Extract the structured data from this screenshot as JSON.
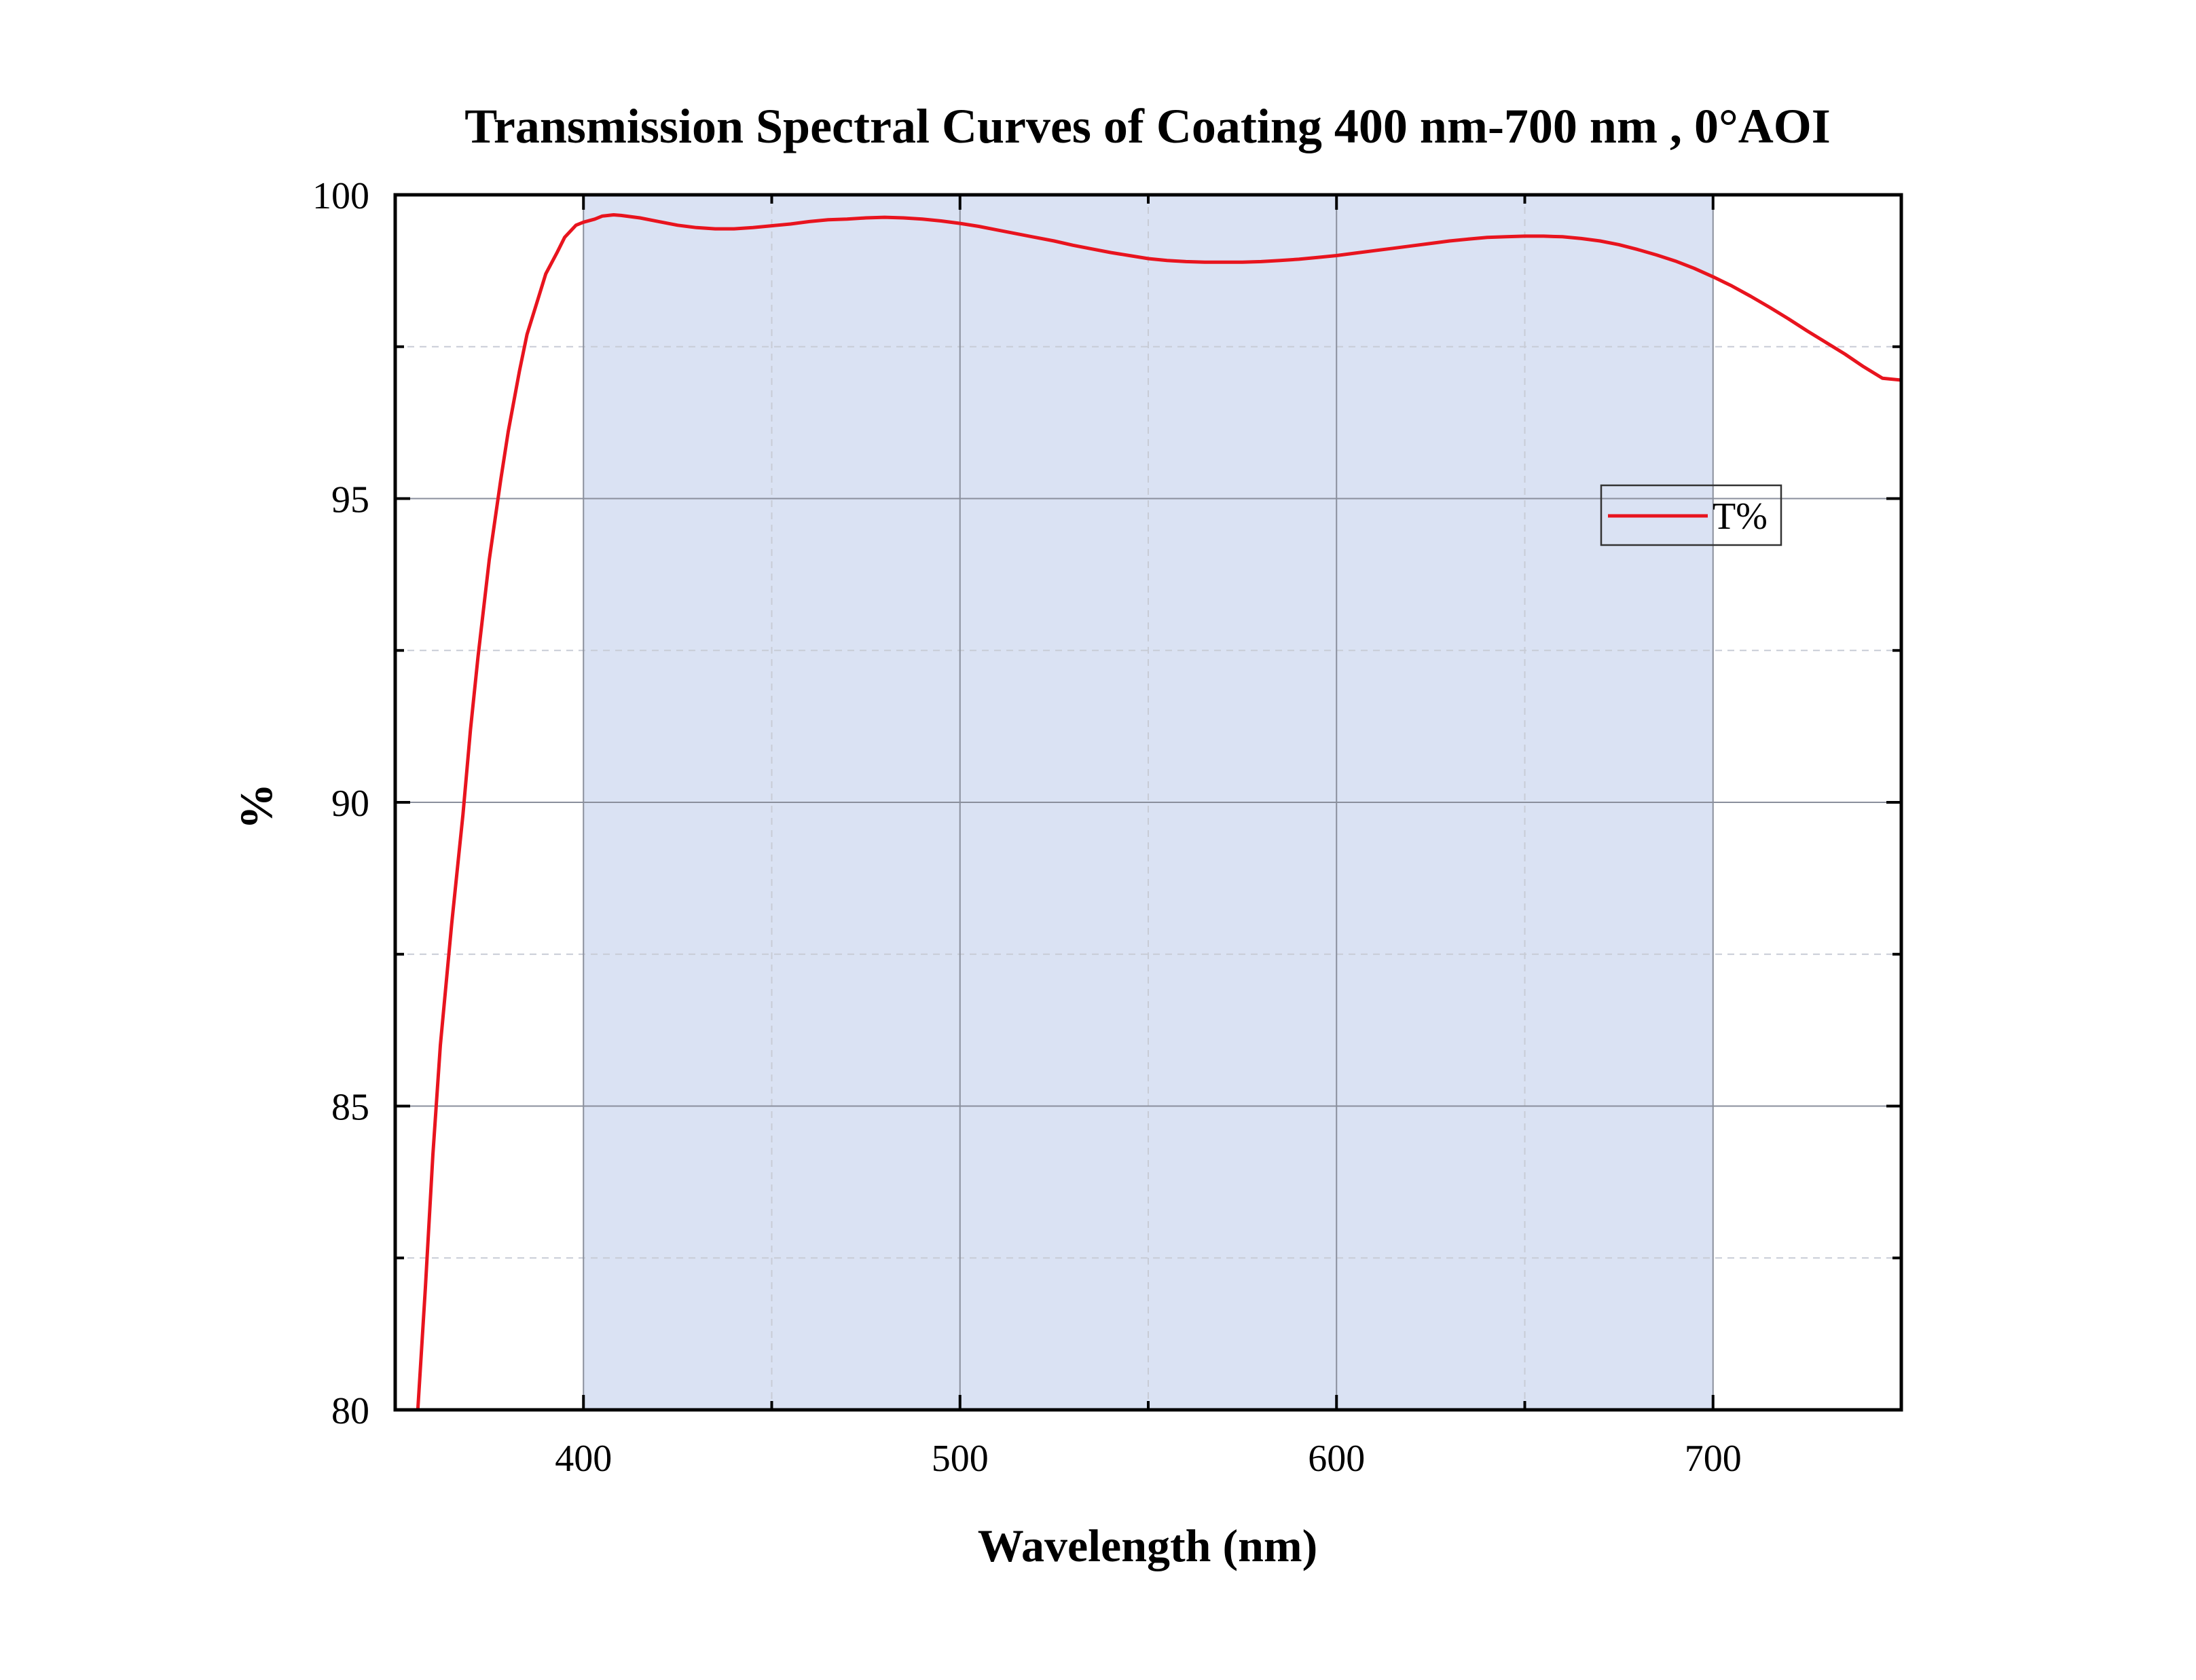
{
  "chart_data": {
    "type": "line",
    "title": "Transmission Spectral Curves of Coating 400 nm-700 nm , 0°AOI",
    "xlabel": "Wavelength (nm)",
    "ylabel": "%",
    "xlim": [
      350,
      750
    ],
    "ylim": [
      80,
      100
    ],
    "x_ticks": [
      400,
      500,
      600,
      700
    ],
    "x_minor_ticks": [
      450,
      550,
      650
    ],
    "y_ticks": [
      80,
      85,
      90,
      95,
      100
    ],
    "y_minor_ticks": [
      82.5,
      87.5,
      92.5,
      97.5
    ],
    "grid": true,
    "shaded_band": {
      "x_range": [
        400,
        700
      ],
      "color": "#dae2f3"
    },
    "legend": {
      "position": "right",
      "entries": [
        "T%"
      ]
    },
    "series": [
      {
        "name": "T%",
        "color": "#e8141e",
        "x": [
          356,
          358,
          360,
          362,
          365,
          368,
          370,
          372,
          375,
          378,
          380,
          383,
          385,
          388,
          390,
          393,
          395,
          398,
          400,
          403,
          405,
          408,
          410,
          415,
          420,
          425,
          430,
          435,
          440,
          445,
          450,
          455,
          460,
          465,
          470,
          475,
          480,
          485,
          490,
          495,
          500,
          505,
          510,
          515,
          520,
          525,
          530,
          535,
          540,
          545,
          550,
          555,
          560,
          565,
          570,
          575,
          580,
          585,
          590,
          595,
          600,
          605,
          610,
          615,
          620,
          625,
          630,
          635,
          640,
          645,
          650,
          655,
          660,
          665,
          670,
          675,
          680,
          685,
          690,
          695,
          700,
          705,
          710,
          715,
          720,
          725,
          730,
          735,
          740,
          745,
          750
        ],
        "y": [
          80.0,
          82.0,
          84.2,
          86.0,
          88.0,
          89.8,
          91.2,
          92.4,
          94.0,
          95.3,
          96.1,
          97.1,
          97.7,
          98.3,
          98.7,
          99.05,
          99.3,
          99.5,
          99.55,
          99.6,
          99.65,
          99.67,
          99.66,
          99.62,
          99.56,
          99.5,
          99.46,
          99.44,
          99.44,
          99.46,
          99.49,
          99.52,
          99.56,
          99.59,
          99.6,
          99.62,
          99.63,
          99.62,
          99.6,
          99.57,
          99.53,
          99.48,
          99.42,
          99.36,
          99.3,
          99.24,
          99.17,
          99.11,
          99.05,
          99.0,
          98.95,
          98.92,
          98.9,
          98.89,
          98.89,
          98.89,
          98.9,
          98.92,
          98.94,
          98.97,
          99.0,
          99.04,
          99.08,
          99.12,
          99.16,
          99.2,
          99.24,
          99.27,
          99.3,
          99.31,
          99.32,
          99.32,
          99.31,
          99.28,
          99.24,
          99.18,
          99.1,
          99.01,
          98.91,
          98.79,
          98.65,
          98.5,
          98.33,
          98.15,
          97.96,
          97.76,
          97.57,
          97.38,
          97.17,
          96.98,
          96.95
        ]
      }
    ]
  }
}
